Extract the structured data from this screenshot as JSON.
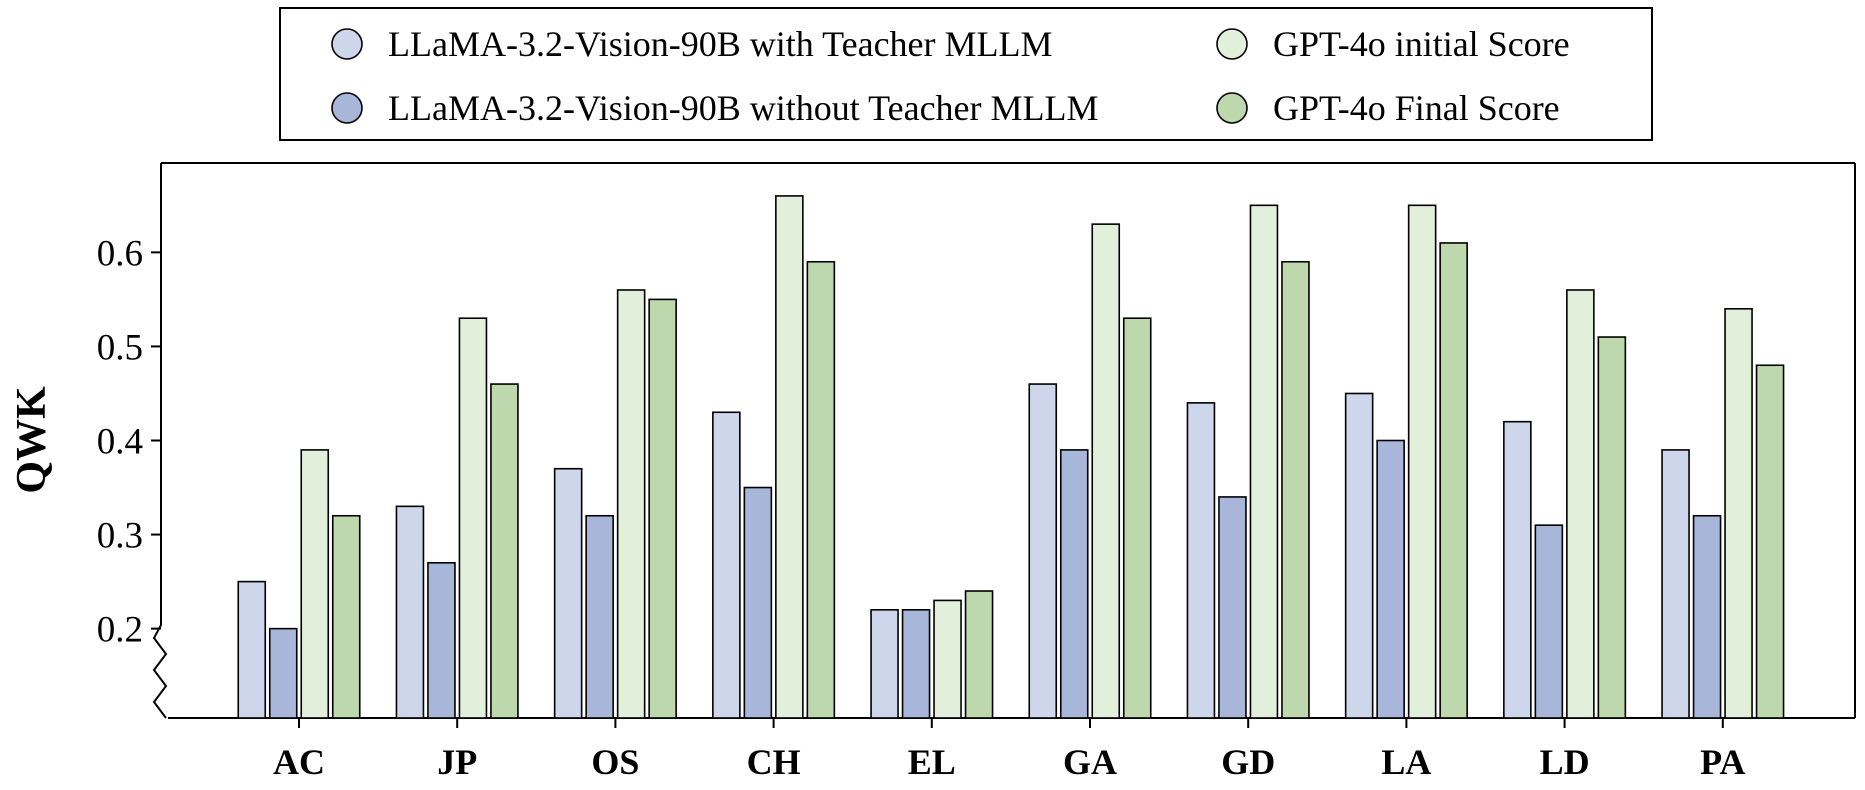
{
  "chart_data": {
    "type": "bar",
    "ylabel": "QWK",
    "xlabel": "",
    "ylim": [
      0.105,
      0.695
    ],
    "yticks": [
      0.2,
      0.3,
      0.4,
      0.5,
      0.6
    ],
    "ytick_labels": [
      "0.2",
      "0.3",
      "0.4",
      "0.5",
      "0.6"
    ],
    "axis_break": "bottom-left",
    "legend_position": "top-center",
    "categories": [
      "AC",
      "JP",
      "OS",
      "CH",
      "EL",
      "GA",
      "GD",
      "LA",
      "LD",
      "PA"
    ],
    "series": [
      {
        "name": "LLaMA-3.2-Vision-90B with Teacher MLLM",
        "color": "#cdd6ea",
        "values": [
          0.25,
          0.33,
          0.37,
          0.43,
          0.22,
          0.46,
          0.44,
          0.45,
          0.42,
          0.39
        ]
      },
      {
        "name": "LLaMA-3.2-Vision-90B without Teacher MLLM",
        "color": "#a8b6da",
        "values": [
          0.2,
          0.27,
          0.32,
          0.35,
          0.22,
          0.39,
          0.34,
          0.4,
          0.31,
          0.32
        ]
      },
      {
        "name": "GPT-4o initial Score",
        "color": "#e2f0db",
        "values": [
          0.39,
          0.53,
          0.56,
          0.66,
          0.23,
          0.63,
          0.65,
          0.65,
          0.56,
          0.54
        ]
      },
      {
        "name": "GPT-4o Final Score",
        "color": "#bcd8ac",
        "values": [
          0.32,
          0.46,
          0.55,
          0.59,
          0.24,
          0.53,
          0.59,
          0.61,
          0.51,
          0.48
        ]
      }
    ]
  }
}
